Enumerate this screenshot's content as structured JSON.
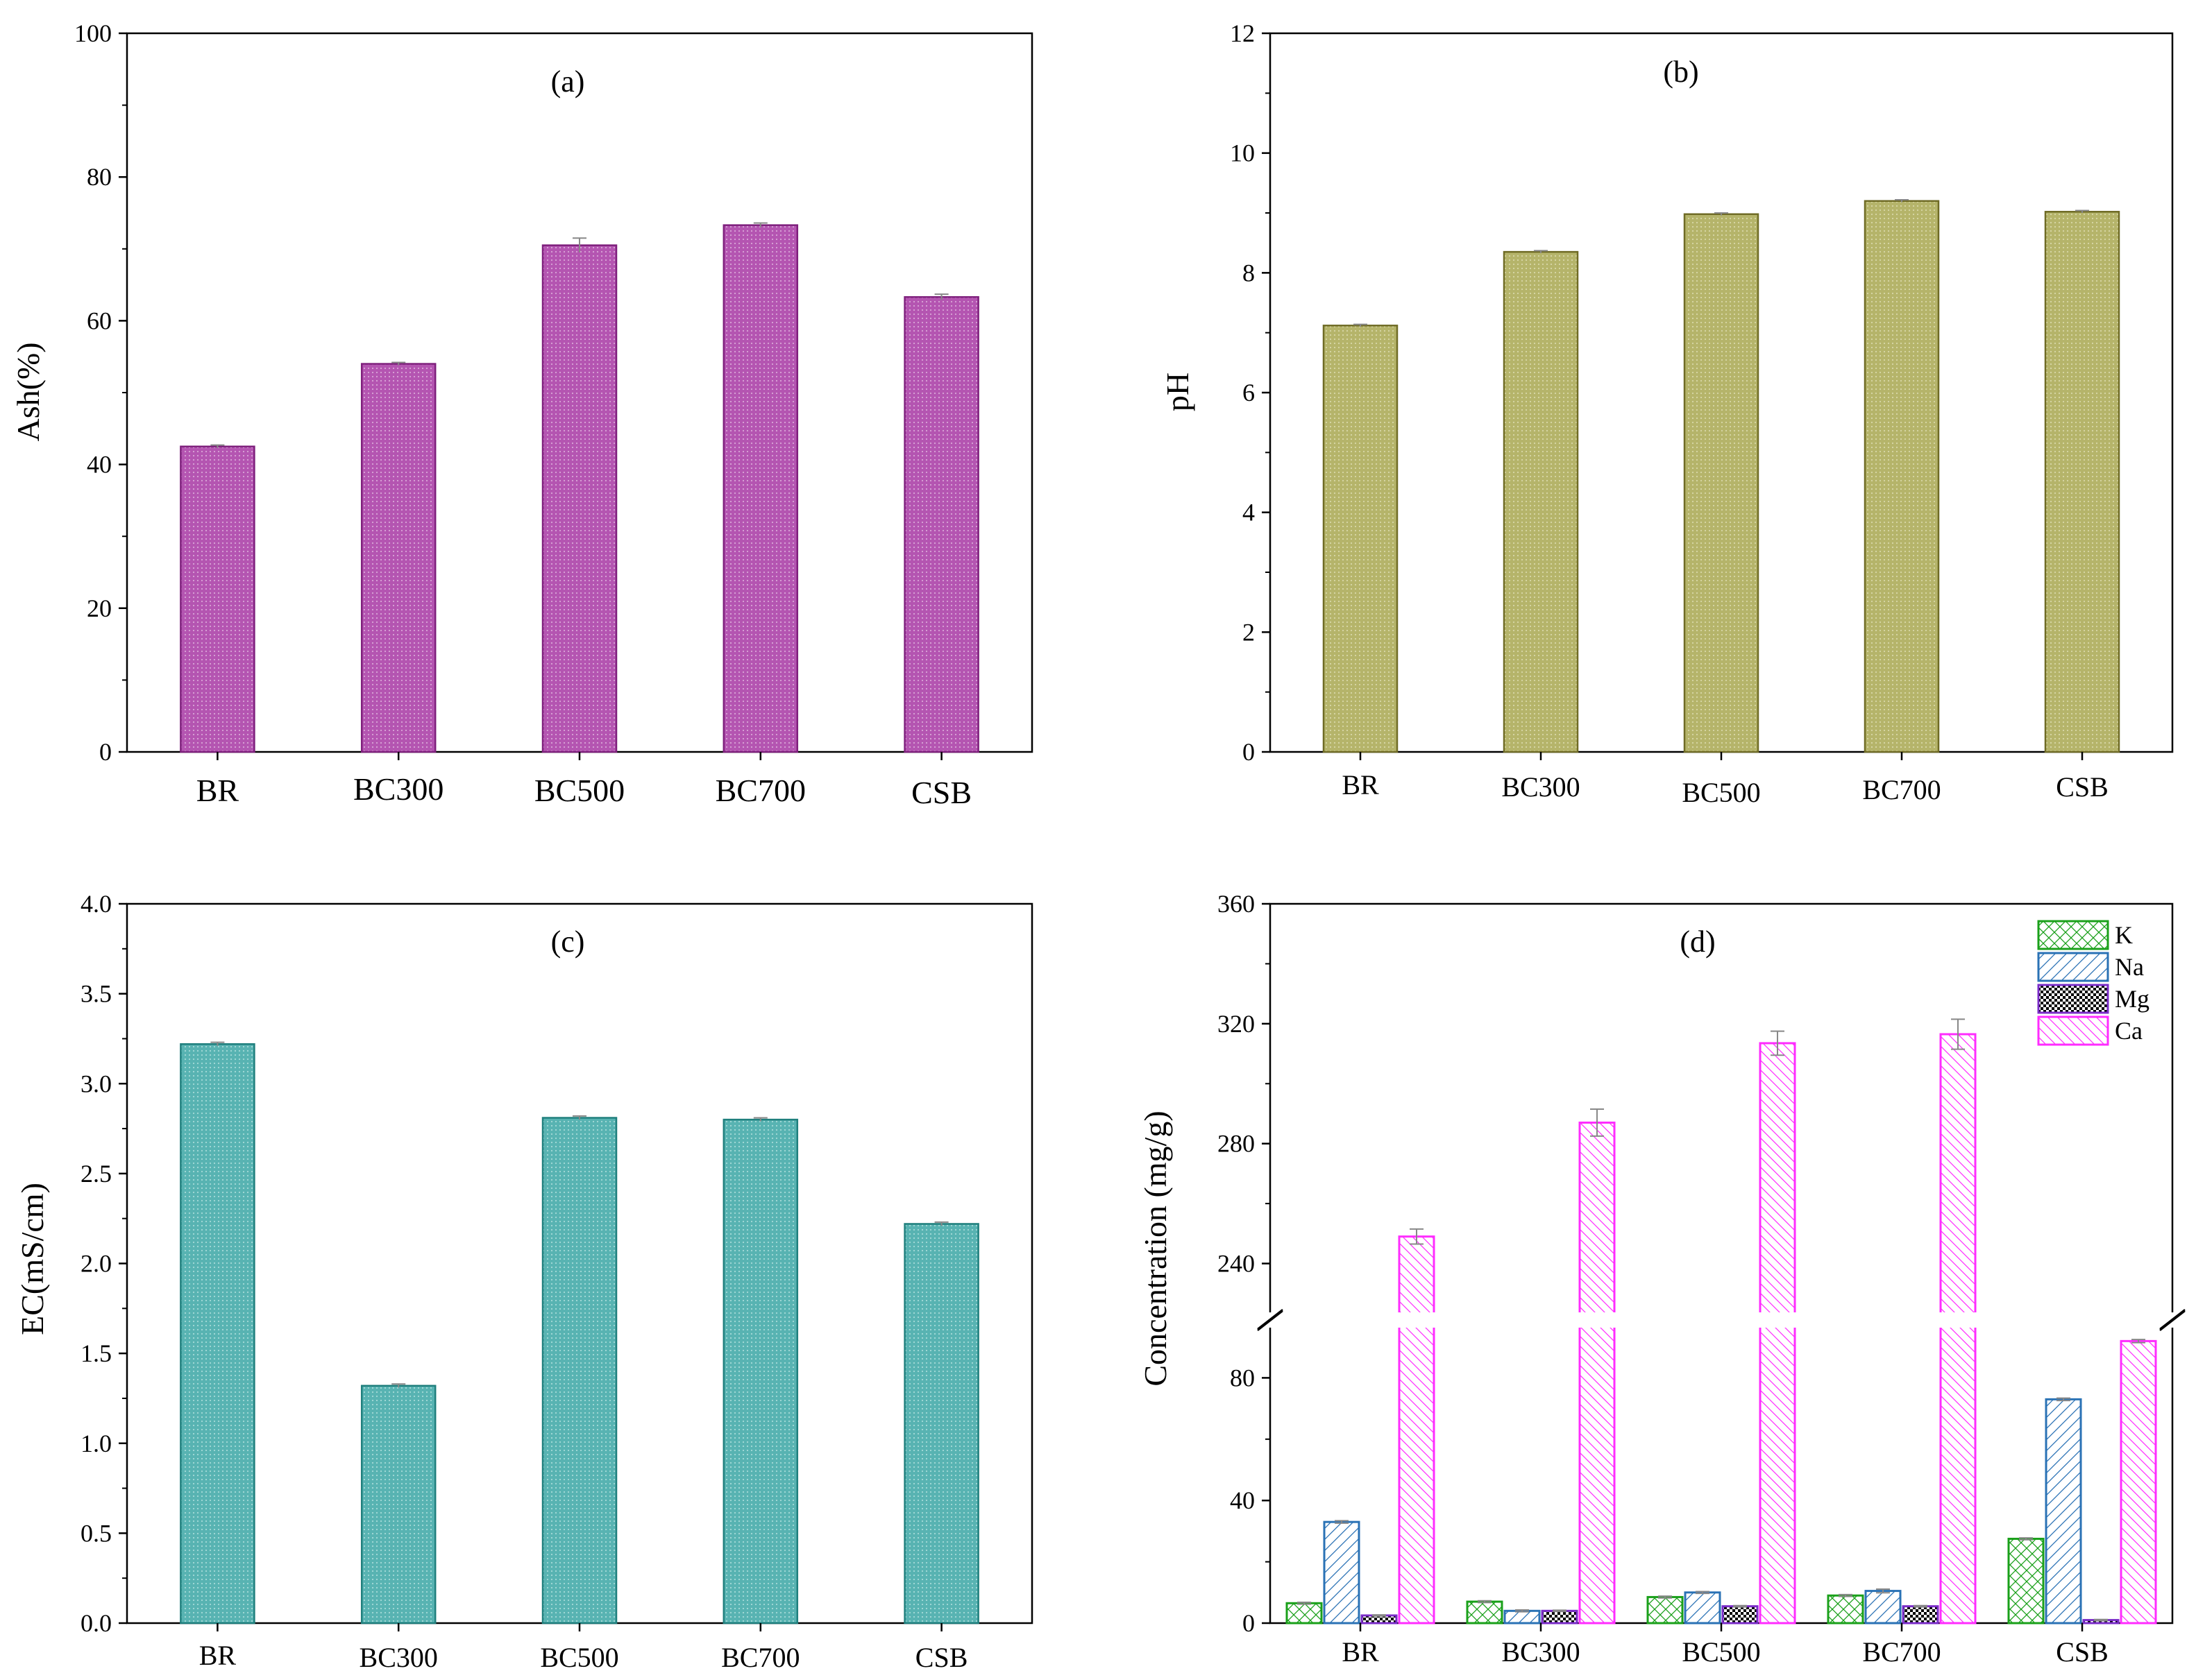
{
  "colors": {
    "ash": "#b455b1",
    "ash_edge": "#7e1f7c",
    "ph": "#b5b46a",
    "ph_edge": "#6f6b25",
    "ec": "#58b3b2",
    "ec_edge": "#1f7f7d",
    "K": "#1aa01a",
    "Na": "#2a72b5",
    "Mg": "#7a2cc8",
    "Ca": "#ff2cff",
    "error": "#888888"
  },
  "chart_data": [
    {
      "id": "a",
      "type": "bar",
      "title": "(a)",
      "xlabel": "",
      "ylabel": "Ash(%)",
      "categories": [
        "BR",
        "BC300",
        "BC500",
        "BC700",
        "CSB"
      ],
      "values": [
        42.5,
        54.0,
        70.5,
        73.3,
        63.3
      ],
      "errors": [
        0.2,
        0.2,
        1.0,
        0.3,
        0.4
      ],
      "ylim": [
        0,
        100
      ],
      "yticks": [
        "0",
        "20",
        "40",
        "60",
        "80",
        "100"
      ],
      "yticks_values": [
        0,
        20,
        40,
        60,
        80,
        100
      ]
    },
    {
      "id": "b",
      "type": "bar",
      "title": "(b)",
      "xlabel": "",
      "ylabel": "pH",
      "categories": [
        "BR",
        "BC300",
        "BC500",
        "BC700",
        "CSB"
      ],
      "values": [
        7.12,
        8.35,
        8.98,
        9.2,
        9.02
      ],
      "errors": [
        0.02,
        0.02,
        0.02,
        0.02,
        0.02
      ],
      "ylim": [
        0,
        12
      ],
      "yticks": [
        "0",
        "2",
        "4",
        "6",
        "8",
        "10",
        "12"
      ],
      "yticks_values": [
        0,
        2,
        4,
        6,
        8,
        10,
        12
      ]
    },
    {
      "id": "c",
      "type": "bar",
      "title": "(c)",
      "xlabel": "",
      "ylabel": "EC(mS/cm)",
      "categories": [
        "BR",
        "BC300",
        "BC500",
        "BC700",
        "CSB"
      ],
      "values": [
        3.22,
        1.32,
        2.81,
        2.8,
        2.22
      ],
      "errors": [
        0.01,
        0.01,
        0.01,
        0.01,
        0.01
      ],
      "ylim": [
        0,
        4.0
      ],
      "yticks": [
        "0.0",
        "0.5",
        "1.0",
        "1.5",
        "2.0",
        "2.5",
        "3.0",
        "3.5",
        "4.0"
      ],
      "yticks_values": [
        0,
        0.5,
        1.0,
        1.5,
        2.0,
        2.5,
        3.0,
        3.5,
        4.0
      ]
    },
    {
      "id": "d",
      "type": "bar",
      "title": "(d)",
      "xlabel": "",
      "ylabel": "Concentration (mg/g)",
      "categories": [
        "BR",
        "BC300",
        "BC500",
        "BC700",
        "CSB"
      ],
      "axis_break": [
        100,
        220
      ],
      "ylim": [
        0,
        360
      ],
      "yticks": [
        "0",
        "40",
        "80",
        "240",
        "280",
        "320",
        "360"
      ],
      "yticks_values": [
        0,
        40,
        80,
        240,
        280,
        320,
        360
      ],
      "legend_position": "top-right",
      "series": [
        {
          "name": "K",
          "values": [
            6.5,
            7.0,
            8.5,
            9.0,
            27.5
          ],
          "errors": [
            0.3,
            0.3,
            0.3,
            0.3,
            0.3
          ]
        },
        {
          "name": "Na",
          "values": [
            33.0,
            4.0,
            10.0,
            10.5,
            73.0
          ],
          "errors": [
            0.4,
            0.3,
            0.3,
            0.6,
            0.4
          ]
        },
        {
          "name": "Mg",
          "values": [
            2.5,
            4.0,
            5.5,
            5.5,
            1.0
          ],
          "errors": [
            0.2,
            0.2,
            0.2,
            0.2,
            0.2
          ]
        },
        {
          "name": "Ca",
          "values": [
            249.0,
            287.0,
            313.5,
            316.5,
            92.0
          ],
          "errors": [
            2.5,
            4.5,
            4.0,
            5.0,
            0.5
          ]
        }
      ]
    }
  ]
}
